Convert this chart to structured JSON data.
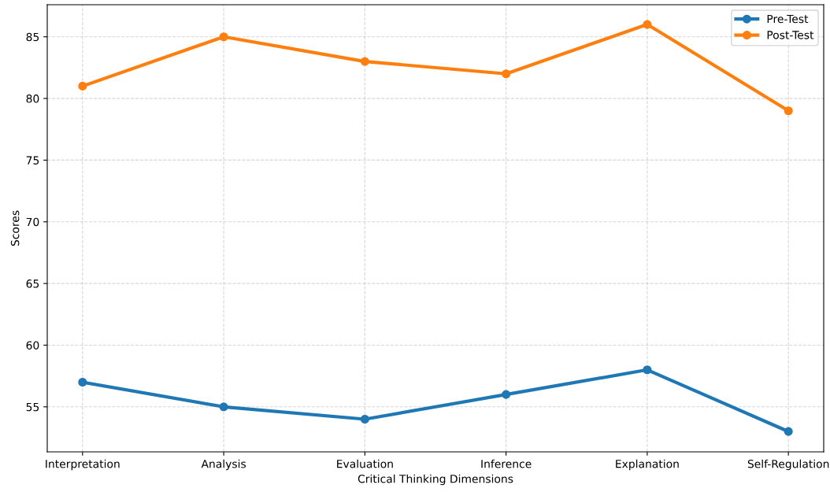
{
  "chart_data": {
    "type": "line",
    "xlabel": "Critical Thinking Dimensions",
    "ylabel": "Scores",
    "categories": [
      "Interpretation",
      "Analysis",
      "Evaluation",
      "Inference",
      "Explanation",
      "Self-Regulation"
    ],
    "series": [
      {
        "name": "Pre-Test",
        "color": "#1f77b4",
        "values": [
          57,
          55,
          54,
          56,
          58,
          53
        ]
      },
      {
        "name": "Post-Test",
        "color": "#ff7f0e",
        "values": [
          81,
          85,
          83,
          82,
          86,
          79
        ]
      }
    ],
    "ylim": [
      51.35,
      87.6
    ],
    "yticks": [
      55,
      60,
      65,
      70,
      75,
      80,
      85
    ],
    "grid": true,
    "legend": "top right",
    "marker": "circle",
    "line_style": "solid"
  }
}
